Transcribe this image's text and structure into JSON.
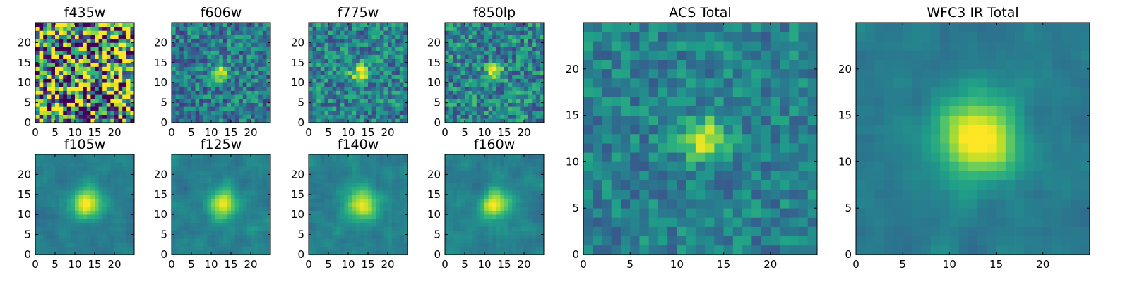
{
  "chart_data": [
    {
      "type": "heatmap",
      "title": "f435w",
      "xlim": [
        0,
        25
      ],
      "ylim": [
        0,
        25
      ],
      "xticks": [
        0,
        5,
        10,
        15,
        20
      ],
      "yticks": [
        0,
        5,
        10,
        15,
        20
      ],
      "colormap": "viridis",
      "signal": {
        "center": [
          12,
          12
        ],
        "width": 1.6,
        "amplitude": 0.1
      },
      "noise": 0.9
    },
    {
      "type": "heatmap",
      "title": "f606w",
      "xlim": [
        0,
        25
      ],
      "ylim": [
        0,
        25
      ],
      "xticks": [
        0,
        5,
        10,
        15,
        20
      ],
      "yticks": [
        0,
        5,
        10,
        15,
        20
      ],
      "colormap": "viridis",
      "signal": {
        "center": [
          12,
          12
        ],
        "width": 1.3,
        "amplitude": 0.7
      },
      "noise": 0.3
    },
    {
      "type": "heatmap",
      "title": "f775w",
      "xlim": [
        0,
        25
      ],
      "ylim": [
        0,
        25
      ],
      "xticks": [
        0,
        5,
        10,
        15,
        20
      ],
      "yticks": [
        0,
        5,
        10,
        15,
        20
      ],
      "colormap": "viridis",
      "signal": {
        "center": [
          12.5,
          12
        ],
        "width": 1.6,
        "amplitude": 0.55
      },
      "noise": 0.3
    },
    {
      "type": "heatmap",
      "title": "f850lp",
      "xlim": [
        0,
        25
      ],
      "ylim": [
        0,
        25
      ],
      "xticks": [
        0,
        5,
        10,
        15,
        20
      ],
      "yticks": [
        0,
        5,
        10,
        15,
        20
      ],
      "colormap": "viridis",
      "signal": {
        "center": [
          12,
          12
        ],
        "width": 1.5,
        "amplitude": 0.5
      },
      "noise": 0.32
    },
    {
      "type": "heatmap",
      "title": "f105w",
      "xlim": [
        0,
        25
      ],
      "ylim": [
        0,
        25
      ],
      "xticks": [
        0,
        5,
        10,
        15,
        20
      ],
      "yticks": [
        0,
        5,
        10,
        15,
        20
      ],
      "colormap": "viridis",
      "signal": {
        "center": [
          12.5,
          12.5
        ],
        "width": 2.6,
        "amplitude": 0.6
      },
      "noise": 0.17
    },
    {
      "type": "heatmap",
      "title": "f125w",
      "xlim": [
        0,
        25
      ],
      "ylim": [
        0,
        25
      ],
      "xticks": [
        0,
        5,
        10,
        15,
        20
      ],
      "yticks": [
        0,
        5,
        10,
        15,
        20
      ],
      "colormap": "viridis",
      "signal": {
        "center": [
          12.5,
          12
        ],
        "width": 2.5,
        "amplitude": 0.58
      },
      "noise": 0.2
    },
    {
      "type": "heatmap",
      "title": "f140w",
      "xlim": [
        0,
        25
      ],
      "ylim": [
        0,
        25
      ],
      "xticks": [
        0,
        5,
        10,
        15,
        20
      ],
      "yticks": [
        0,
        5,
        10,
        15,
        20
      ],
      "colormap": "viridis",
      "signal": {
        "center": [
          13,
          12
        ],
        "width": 2.6,
        "amplitude": 0.55
      },
      "noise": 0.2
    },
    {
      "type": "heatmap",
      "title": "f160w",
      "xlim": [
        0,
        25
      ],
      "ylim": [
        0,
        25
      ],
      "xticks": [
        0,
        5,
        10,
        15,
        20
      ],
      "yticks": [
        0,
        5,
        10,
        15,
        20
      ],
      "colormap": "viridis",
      "signal": {
        "center": [
          12.5,
          12
        ],
        "width": 2.6,
        "amplitude": 0.6
      },
      "noise": 0.2
    },
    {
      "type": "heatmap",
      "title": "ACS Total",
      "xlim": [
        0,
        25
      ],
      "ylim": [
        0,
        25
      ],
      "xticks": [
        0,
        5,
        10,
        15,
        20
      ],
      "yticks": [
        0,
        5,
        10,
        15,
        20
      ],
      "colormap": "viridis",
      "signal": {
        "center": [
          12.5,
          12
        ],
        "width": 1.5,
        "amplitude": 0.55
      },
      "noise": 0.2
    },
    {
      "type": "heatmap",
      "title": "WFC3 IR Total",
      "xlim": [
        0,
        25
      ],
      "ylim": [
        0,
        25
      ],
      "xticks": [
        0,
        5,
        10,
        15,
        20
      ],
      "yticks": [
        0,
        5,
        10,
        15,
        20
      ],
      "colormap": "viridis",
      "signal": {
        "center": [
          12.5,
          12
        ],
        "width": 3.0,
        "amplitude": 0.7
      },
      "noise": 0.15
    }
  ]
}
